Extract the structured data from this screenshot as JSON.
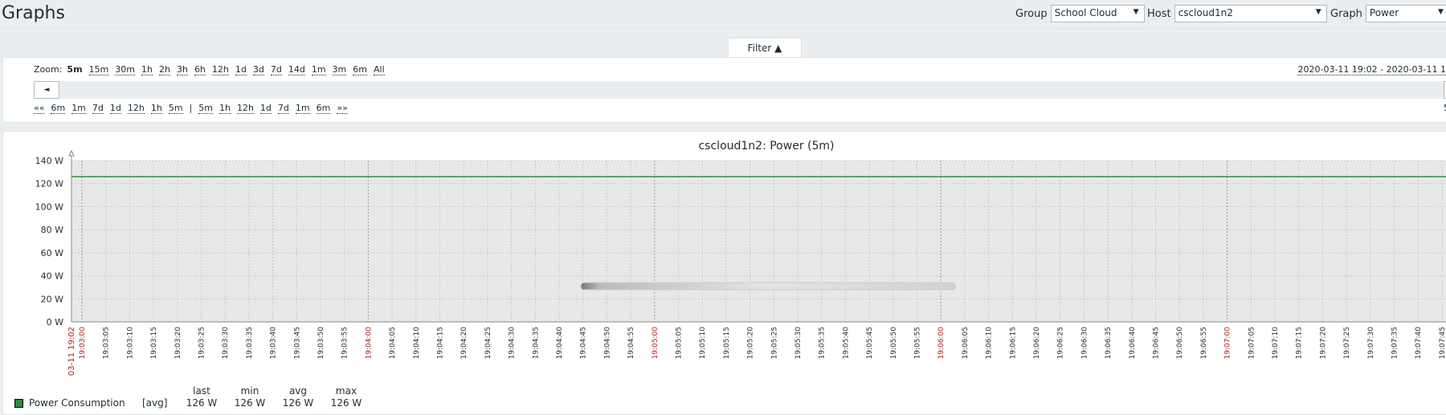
{
  "header": {
    "title": "Graphs",
    "group_label": "Group",
    "group_value": "School Cloud",
    "host_label": "Host",
    "host_value": "cscloud1n2",
    "graph_label": "Graph",
    "graph_value": "Power"
  },
  "filter": {
    "tab_label": "Filter ▲",
    "zoom_label": "Zoom:",
    "zoom_options": [
      "5m",
      "15m",
      "30m",
      "1h",
      "2h",
      "3h",
      "6h",
      "12h",
      "1d",
      "3d",
      "7d",
      "14d",
      "1m",
      "3m",
      "6m",
      "All"
    ],
    "zoom_active": "5m",
    "date_range": "2020-03-11 19:02 - 2020-03-11 1",
    "nav_back_first": "««",
    "nav_back": [
      "6m",
      "1m",
      "7d",
      "1d",
      "12h",
      "1h",
      "5m"
    ],
    "nav_sep": "|",
    "nav_fwd": [
      "5m",
      "1h",
      "12h",
      "1d",
      "7d",
      "1m",
      "6m"
    ],
    "nav_fwd_last": "»»",
    "period": "5",
    "scroll_left": "◄"
  },
  "graph": {
    "title": "cscloud1n2: Power (5m)"
  },
  "chart_data": {
    "type": "line",
    "title": "cscloud1n2: Power (5m)",
    "ylim": [
      0,
      140
    ],
    "y_ticks": [
      "0 W",
      "20 W",
      "40 W",
      "60 W",
      "80 W",
      "100 W",
      "120 W",
      "140 W"
    ],
    "y_tick_values": [
      0,
      20,
      40,
      60,
      80,
      100,
      120,
      140
    ],
    "x_start_label": "03-11 19:02",
    "x_labels": [
      "19:03:00",
      "19:03:05",
      "19:03:10",
      "19:03:15",
      "19:03:20",
      "19:03:25",
      "19:03:30",
      "19:03:35",
      "19:03:40",
      "19:03:45",
      "19:03:50",
      "19:03:55",
      "19:04:00",
      "19:04:05",
      "19:04:10",
      "19:04:15",
      "19:04:20",
      "19:04:25",
      "19:04:30",
      "19:04:35",
      "19:04:40",
      "19:04:45",
      "19:04:50",
      "19:04:55",
      "19:05:00",
      "19:05:05",
      "19:05:10",
      "19:05:15",
      "19:05:20",
      "19:05:25",
      "19:05:30",
      "19:05:35",
      "19:05:40",
      "19:05:45",
      "19:05:50",
      "19:05:55",
      "19:06:00",
      "19:06:05",
      "19:06:10",
      "19:06:15",
      "19:06:20",
      "19:06:25",
      "19:06:30",
      "19:06:35",
      "19:06:40",
      "19:06:45",
      "19:06:50",
      "19:06:55",
      "19:07:00",
      "19:07:05",
      "19:07:10",
      "19:07:15",
      "19:07:20",
      "19:07:25",
      "19:07:30",
      "19:07:35",
      "19:07:40",
      "19:07:45"
    ],
    "major_labels": [
      "19:03:00",
      "19:04:00",
      "19:05:00",
      "19:06:00",
      "19:07:00"
    ],
    "series": [
      {
        "name": "Power Consumption",
        "color": "#2e8b3a",
        "values": [
          126,
          126
        ]
      }
    ],
    "grid": true
  },
  "legend": {
    "item_name": "Power Consumption",
    "function": "[avg]",
    "headers": [
      "last",
      "min",
      "avg",
      "max"
    ],
    "values": [
      "126 W",
      "126 W",
      "126 W",
      "126 W"
    ],
    "swatch_color": "#2e8b3a"
  }
}
